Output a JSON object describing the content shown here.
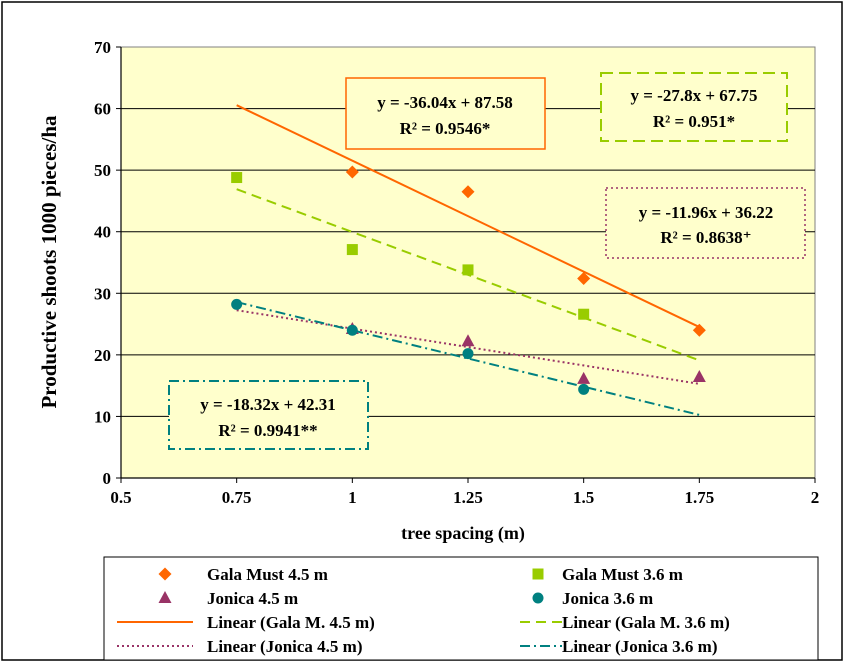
{
  "chart_data": {
    "type": "scatter",
    "xlabel": "tree spacing (m)",
    "ylabel": "Productive shoots 1000 pieces/ha",
    "xlim": [
      0.5,
      2
    ],
    "ylim": [
      0,
      70
    ],
    "x_ticks": [
      "0.5",
      "0.75",
      "1",
      "1.25",
      "1.5",
      "1.75",
      "2"
    ],
    "y_ticks": [
      "0",
      "10",
      "20",
      "30",
      "40",
      "50",
      "60",
      "70"
    ],
    "grid": "horizontal",
    "plot_background": "#FFFFCC",
    "legend_position": "bottom",
    "series": [
      {
        "name": "Gala Must 4.5 m",
        "marker": "diamond",
        "color": "#FF6600",
        "points": [
          [
            1.0,
            49.7
          ],
          [
            1.25,
            46.5
          ],
          [
            1.5,
            32.4
          ],
          [
            1.75,
            24.0
          ]
        ]
      },
      {
        "name": "Gala Must 3.6 m",
        "marker": "square",
        "color": "#99CC00",
        "points": [
          [
            0.75,
            48.8
          ],
          [
            1.0,
            37.1
          ],
          [
            1.25,
            33.8
          ],
          [
            1.5,
            26.6
          ]
        ]
      },
      {
        "name": "Jonica 4.5 m",
        "marker": "triangle",
        "color": "#993366",
        "points": [
          [
            1.0,
            24.2
          ],
          [
            1.25,
            22.2
          ],
          [
            1.5,
            16.1
          ],
          [
            1.75,
            16.4
          ]
        ]
      },
      {
        "name": "Jonica 3.6 m",
        "marker": "circle",
        "color": "#008080",
        "points": [
          [
            0.75,
            28.2
          ],
          [
            1.0,
            24.0
          ],
          [
            1.25,
            20.2
          ],
          [
            1.5,
            14.4
          ]
        ]
      }
    ],
    "trendlines": [
      {
        "name": "Linear (Gala M. 4.5 m)",
        "color": "#FF6600",
        "dash": "solid",
        "slope": -36.04,
        "intercept": 87.58,
        "x_range": [
          0.75,
          1.75
        ],
        "equation": "y = -36.04x + 87.58",
        "r2_text": "R² = 0.9546*"
      },
      {
        "name": "Linear (Gala M. 3.6 m)",
        "color": "#99CC00",
        "dash": "dash",
        "slope": -27.8,
        "intercept": 67.75,
        "x_range": [
          0.75,
          1.75
        ],
        "equation": "y = -27.8x + 67.75",
        "r2_text": "R² = 0.951*"
      },
      {
        "name": "Linear (Jonica 4.5 m)",
        "color": "#993366",
        "dash": "dot",
        "slope": -11.96,
        "intercept": 36.22,
        "x_range": [
          0.75,
          1.75
        ],
        "equation": "y = -11.96x + 36.22",
        "r2_text": "R² = 0.8638⁺"
      },
      {
        "name": "Linear (Jonica 3.6 m)",
        "color": "#008080",
        "dash": "dashdot",
        "slope": -18.32,
        "intercept": 42.31,
        "x_range": [
          0.75,
          1.75
        ],
        "equation": "y = -18.32x + 42.31",
        "r2_text": "R² = 0.9941**"
      }
    ]
  }
}
